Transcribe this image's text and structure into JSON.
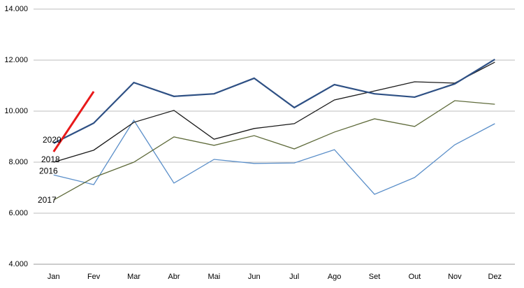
{
  "chart_data": {
    "type": "line",
    "categories": [
      "Jan",
      "Fev",
      "Mar",
      "Abr",
      "Mai",
      "Jun",
      "Jul",
      "Ago",
      "Set",
      "Out",
      "Nov",
      "Dez"
    ],
    "series": [
      {
        "name": "2016",
        "color": "#5b8fc9",
        "values": [
          7500,
          7120,
          9640,
          7180,
          8110,
          7950,
          7970,
          8490,
          6740,
          7400,
          8680,
          9510
        ]
      },
      {
        "name": "2017",
        "color": "#5f6b3b",
        "values": [
          6520,
          7400,
          8000,
          8990,
          8660,
          9040,
          8520,
          9180,
          9700,
          9400,
          10410,
          10270
        ]
      },
      {
        "name": "2018",
        "color": "#1a1a1a",
        "values": [
          8000,
          8470,
          9560,
          10030,
          8900,
          9320,
          9510,
          10440,
          10790,
          11150,
          11100,
          11920
        ]
      },
      {
        "color": "#2e5084",
        "values": [
          8740,
          9530,
          11120,
          10580,
          10680,
          11290,
          10140,
          11040,
          10680,
          10550,
          11070,
          12030
        ]
      },
      {
        "name": "2020",
        "color": "#e8191a",
        "values": [
          8410,
          10770,
          null,
          null,
          null,
          null,
          null,
          null,
          null,
          null,
          null,
          null
        ]
      }
    ],
    "ylim": [
      4000,
      14000
    ],
    "yticks": [
      {
        "value": 4000,
        "label": "4.000"
      },
      {
        "value": 6000,
        "label": "6.000"
      },
      {
        "value": 8000,
        "label": "8.000"
      },
      {
        "value": 10000,
        "label": "10.000"
      },
      {
        "value": 12000,
        "label": "12.000"
      },
      {
        "value": 14000,
        "label": "14.000"
      }
    ],
    "grid": true
  }
}
